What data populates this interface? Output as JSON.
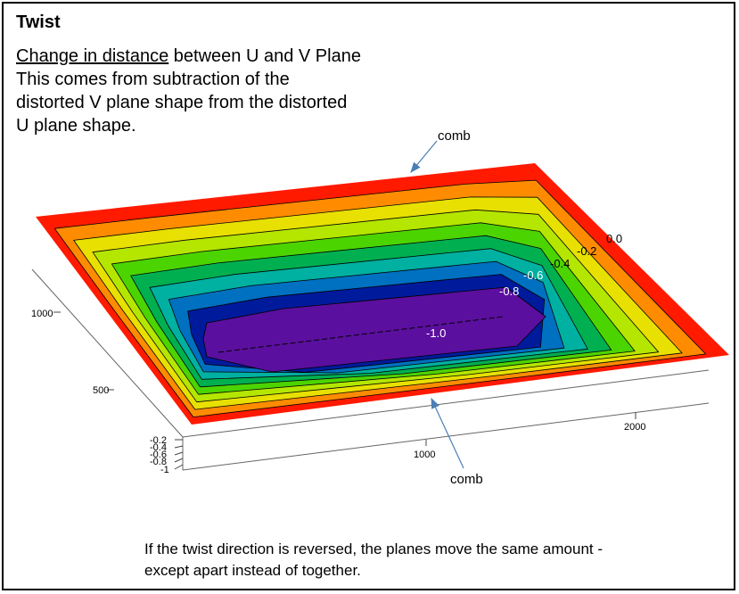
{
  "title": "Twist",
  "description": {
    "underlined": "Change in distance",
    "rest_first_line": " between U and V Plane",
    "lines": [
      "This  comes from subtraction of the",
      "distorted V plane shape from the distorted",
      "U plane shape."
    ]
  },
  "annotations": {
    "comb_top": "comb",
    "comb_bottom": "comb"
  },
  "contour_labels": [
    "0.0",
    "-0.2",
    "-0.4",
    "-0.6",
    "-0.8",
    "-1.0"
  ],
  "axes": {
    "y_ticks": [
      "1000",
      "500"
    ],
    "x_ticks": [
      "1000",
      "2000"
    ],
    "z_ticks": [
      "-0.2",
      "-0.4",
      "-0.6",
      "-0.8",
      "-1"
    ]
  },
  "footer": [
    "If the twist direction is reversed, the planes move the same amount -",
    "except apart instead of together."
  ],
  "colors": {
    "levels": [
      "#ff1a00",
      "#ff8c00",
      "#e8e000",
      "#b4e600",
      "#4cd400",
      "#00b050",
      "#00b0a0",
      "#0070c0",
      "#001a9c",
      "#5b0f9e"
    ],
    "arrow": "#4a7fb5"
  }
}
